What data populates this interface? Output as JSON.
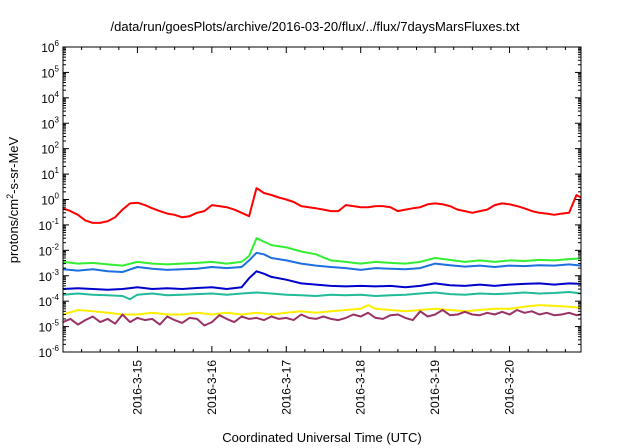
{
  "chart_data": {
    "type": "line",
    "title": "/data/run/goesPlots/archive/2016-03-20/flux/../flux/7daysMarsFluxes.txt",
    "xlabel": "Coordinated Universal Time (UTC)",
    "ylabel": "protons/cm²-s-sr-MeV",
    "ylabel_parts": {
      "base": "protons/cm",
      "sup": "2",
      "rest": "-s-sr-MeV"
    },
    "yscale": "log",
    "ylim_exp": [
      -6,
      6
    ],
    "y_tick_base": "10",
    "y_tick_exponents": [
      "-6",
      "-5",
      "-4",
      "-3",
      "-2",
      "-1",
      "0",
      "1",
      "2",
      "3",
      "4",
      "5",
      "6"
    ],
    "xlim_days": [
      14.0,
      20.96
    ],
    "x_tick_days": [
      15,
      16,
      17,
      18,
      19,
      20
    ],
    "x_tick_labels": [
      "2016-3-15",
      "2016-3-16",
      "2016-3-17",
      "2016-3-18",
      "2016-3-19",
      "2016-3-20"
    ],
    "grid": false,
    "legend": "none",
    "series": [
      {
        "color": "#ff0000",
        "x": [
          14.0,
          14.1,
          14.2,
          14.3,
          14.4,
          14.5,
          14.6,
          14.7,
          14.8,
          14.9,
          15.0,
          15.1,
          15.2,
          15.3,
          15.4,
          15.5,
          15.6,
          15.7,
          15.8,
          15.9,
          16.0,
          16.1,
          16.2,
          16.3,
          16.4,
          16.5,
          16.6,
          16.7,
          16.8,
          16.9,
          17.0,
          17.1,
          17.2,
          17.3,
          17.4,
          17.5,
          17.6,
          17.7,
          17.8,
          17.9,
          18.0,
          18.1,
          18.2,
          18.3,
          18.4,
          18.5,
          18.6,
          18.7,
          18.8,
          18.9,
          19.0,
          19.1,
          19.2,
          19.3,
          19.4,
          19.5,
          19.6,
          19.7,
          19.8,
          19.9,
          20.0,
          20.1,
          20.2,
          20.3,
          20.4,
          20.5,
          20.6,
          20.7,
          20.8,
          20.9,
          20.96
        ],
        "y": [
          0.45,
          0.35,
          0.25,
          0.15,
          0.12,
          0.12,
          0.14,
          0.2,
          0.4,
          0.7,
          0.75,
          0.6,
          0.45,
          0.35,
          0.28,
          0.25,
          0.2,
          0.22,
          0.3,
          0.35,
          0.6,
          0.55,
          0.5,
          0.4,
          0.3,
          0.22,
          2.8,
          1.8,
          1.5,
          1.2,
          1.0,
          0.8,
          0.55,
          0.5,
          0.45,
          0.4,
          0.35,
          0.35,
          0.6,
          0.55,
          0.5,
          0.5,
          0.55,
          0.55,
          0.5,
          0.35,
          0.4,
          0.45,
          0.5,
          0.65,
          0.7,
          0.65,
          0.55,
          0.4,
          0.35,
          0.3,
          0.35,
          0.4,
          0.6,
          0.7,
          0.65,
          0.55,
          0.45,
          0.35,
          0.3,
          0.28,
          0.25,
          0.28,
          0.3,
          1.5,
          1.2
        ]
      },
      {
        "color": "#33ee33",
        "x": [
          14.0,
          14.2,
          14.4,
          14.6,
          14.8,
          15.0,
          15.2,
          15.4,
          15.6,
          15.8,
          16.0,
          16.2,
          16.4,
          16.5,
          16.6,
          16.7,
          16.8,
          17.0,
          17.2,
          17.4,
          17.6,
          17.8,
          18.0,
          18.2,
          18.4,
          18.6,
          18.8,
          19.0,
          19.2,
          19.4,
          19.6,
          19.8,
          20.0,
          20.2,
          20.4,
          20.6,
          20.8,
          20.96
        ],
        "y": [
          0.0035,
          0.003,
          0.0032,
          0.0028,
          0.0025,
          0.0035,
          0.003,
          0.0028,
          0.003,
          0.0032,
          0.0035,
          0.003,
          0.0035,
          0.006,
          0.03,
          0.022,
          0.016,
          0.013,
          0.009,
          0.007,
          0.004,
          0.0035,
          0.003,
          0.0035,
          0.0032,
          0.003,
          0.0035,
          0.005,
          0.0042,
          0.0035,
          0.004,
          0.0035,
          0.004,
          0.0038,
          0.0042,
          0.004,
          0.0045,
          0.0048
        ]
      },
      {
        "color": "#1e6fe0",
        "x": [
          14.0,
          14.2,
          14.4,
          14.6,
          14.8,
          15.0,
          15.2,
          15.4,
          15.6,
          15.8,
          16.0,
          16.2,
          16.4,
          16.5,
          16.6,
          16.7,
          16.8,
          17.0,
          17.2,
          17.4,
          17.6,
          17.8,
          18.0,
          18.2,
          18.4,
          18.6,
          18.8,
          19.0,
          19.2,
          19.4,
          19.6,
          19.8,
          20.0,
          20.2,
          20.4,
          20.6,
          20.8,
          20.96
        ],
        "y": [
          0.0018,
          0.0016,
          0.0018,
          0.0015,
          0.0014,
          0.0022,
          0.0019,
          0.0017,
          0.0018,
          0.0019,
          0.0022,
          0.002,
          0.0022,
          0.004,
          0.008,
          0.007,
          0.005,
          0.004,
          0.003,
          0.0025,
          0.0022,
          0.002,
          0.0017,
          0.002,
          0.0019,
          0.0018,
          0.002,
          0.003,
          0.0026,
          0.0023,
          0.0025,
          0.0022,
          0.0025,
          0.0024,
          0.0026,
          0.0025,
          0.0028,
          0.0025
        ]
      },
      {
        "color": "#0000cc",
        "x": [
          14.0,
          14.2,
          14.4,
          14.6,
          14.8,
          15.0,
          15.2,
          15.4,
          15.6,
          15.8,
          16.0,
          16.2,
          16.4,
          16.5,
          16.6,
          16.7,
          16.8,
          17.0,
          17.2,
          17.4,
          17.6,
          17.8,
          18.0,
          18.2,
          18.4,
          18.6,
          18.8,
          19.0,
          19.2,
          19.4,
          19.6,
          19.8,
          20.0,
          20.2,
          20.4,
          20.6,
          20.8,
          20.96
        ],
        "y": [
          0.0003,
          0.00032,
          0.0003,
          0.00028,
          0.0003,
          0.00035,
          0.0003,
          0.00032,
          0.0003,
          0.00033,
          0.00035,
          0.0003,
          0.00035,
          0.0008,
          0.0015,
          0.0012,
          0.0009,
          0.0007,
          0.0005,
          0.00045,
          0.0004,
          0.00038,
          0.0004,
          0.00038,
          0.0004,
          0.00035,
          0.0004,
          0.0005,
          0.00042,
          0.0004,
          0.00045,
          0.0004,
          0.00045,
          0.00048,
          0.0005,
          0.00045,
          0.0005,
          0.00048
        ]
      },
      {
        "color": "#22bb99",
        "x": [
          14.0,
          14.2,
          14.4,
          14.6,
          14.8,
          14.9,
          15.0,
          15.2,
          15.4,
          15.6,
          15.8,
          16.0,
          16.2,
          16.4,
          16.6,
          16.8,
          17.0,
          17.2,
          17.4,
          17.6,
          17.8,
          18.0,
          18.2,
          18.4,
          18.6,
          18.8,
          19.0,
          19.2,
          19.4,
          19.6,
          19.8,
          20.0,
          20.2,
          20.4,
          20.6,
          20.8,
          20.96
        ],
        "y": [
          0.00018,
          0.0002,
          0.00018,
          0.00017,
          0.00016,
          0.00012,
          0.00018,
          0.0002,
          0.00017,
          0.00018,
          0.00019,
          0.0002,
          0.00018,
          0.0002,
          0.00022,
          0.0002,
          0.00018,
          0.00017,
          0.00016,
          0.00018,
          0.00017,
          0.00018,
          0.00016,
          0.00017,
          0.00018,
          0.0002,
          0.00022,
          0.00019,
          0.00018,
          0.0002,
          0.00019,
          0.0002,
          0.00022,
          0.0002,
          0.00021,
          0.00023,
          0.0002
        ]
      },
      {
        "color": "#ffee00",
        "x": [
          14.0,
          14.2,
          14.4,
          14.6,
          14.8,
          15.0,
          15.2,
          15.4,
          15.6,
          15.8,
          16.0,
          16.2,
          16.4,
          16.6,
          16.8,
          17.0,
          17.2,
          17.4,
          17.6,
          17.8,
          18.0,
          18.1,
          18.2,
          18.4,
          18.6,
          18.8,
          19.0,
          19.2,
          19.4,
          19.6,
          19.8,
          20.0,
          20.2,
          20.4,
          20.6,
          20.8,
          20.96
        ],
        "y": [
          3e-05,
          4.5e-05,
          4e-05,
          3.5e-05,
          3e-05,
          3e-05,
          3.5e-05,
          3e-05,
          3e-05,
          3.5e-05,
          3e-05,
          3.5e-05,
          3e-05,
          3.5e-05,
          3e-05,
          3.5e-05,
          4e-05,
          3.5e-05,
          4e-05,
          4.5e-05,
          5e-05,
          7e-05,
          5e-05,
          4.5e-05,
          4e-05,
          4.5e-05,
          5e-05,
          4.5e-05,
          4e-05,
          4.5e-05,
          5e-05,
          5e-05,
          6e-05,
          7e-05,
          6.5e-05,
          6e-05,
          5.5e-05
        ]
      },
      {
        "color": "#993366",
        "x": [
          14.0,
          14.1,
          14.2,
          14.3,
          14.4,
          14.5,
          14.6,
          14.7,
          14.8,
          14.9,
          15.0,
          15.1,
          15.2,
          15.3,
          15.4,
          15.5,
          15.6,
          15.7,
          15.8,
          15.9,
          16.0,
          16.1,
          16.2,
          16.3,
          16.4,
          16.5,
          16.6,
          16.7,
          16.8,
          16.9,
          17.0,
          17.1,
          17.2,
          17.3,
          17.4,
          17.5,
          17.6,
          17.7,
          17.8,
          17.9,
          18.0,
          18.1,
          18.2,
          18.3,
          18.4,
          18.5,
          18.6,
          18.7,
          18.8,
          18.9,
          19.0,
          19.1,
          19.2,
          19.3,
          19.4,
          19.5,
          19.6,
          19.7,
          19.8,
          19.9,
          20.0,
          20.1,
          20.2,
          20.3,
          20.4,
          20.5,
          20.6,
          20.7,
          20.8,
          20.9,
          20.96
        ],
        "y": [
          1.5e-05,
          2e-05,
          1.2e-05,
          1.8e-05,
          2.5e-05,
          1.5e-05,
          2e-05,
          1.3e-05,
          3e-05,
          1.5e-05,
          2.2e-05,
          1.8e-05,
          2e-05,
          1.2e-05,
          2.5e-05,
          1.8e-05,
          1.4e-05,
          2.2e-05,
          2e-05,
          1.1e-05,
          1.5e-05,
          2.8e-05,
          2e-05,
          1.5e-05,
          2.5e-05,
          2e-05,
          2.2e-05,
          1.8e-05,
          2.5e-05,
          2e-05,
          2.2e-05,
          1.8e-05,
          3e-05,
          2.2e-05,
          2e-05,
          2.5e-05,
          2e-05,
          1.8e-05,
          2.2e-05,
          3e-05,
          2.5e-05,
          3.5e-05,
          2.2e-05,
          2e-05,
          2.8e-05,
          3e-05,
          2.2e-05,
          1.8e-05,
          4e-05,
          2.5e-05,
          3e-05,
          4.5e-05,
          2.8e-05,
          3e-05,
          3.8e-05,
          3e-05,
          2.8e-05,
          3.5e-05,
          3e-05,
          3.8e-05,
          3e-05,
          4.5e-05,
          3.5e-05,
          4e-05,
          3e-05,
          3.5e-05,
          2.8e-05,
          3e-05,
          3.5e-05,
          2.8e-05,
          3e-05
        ]
      }
    ]
  }
}
